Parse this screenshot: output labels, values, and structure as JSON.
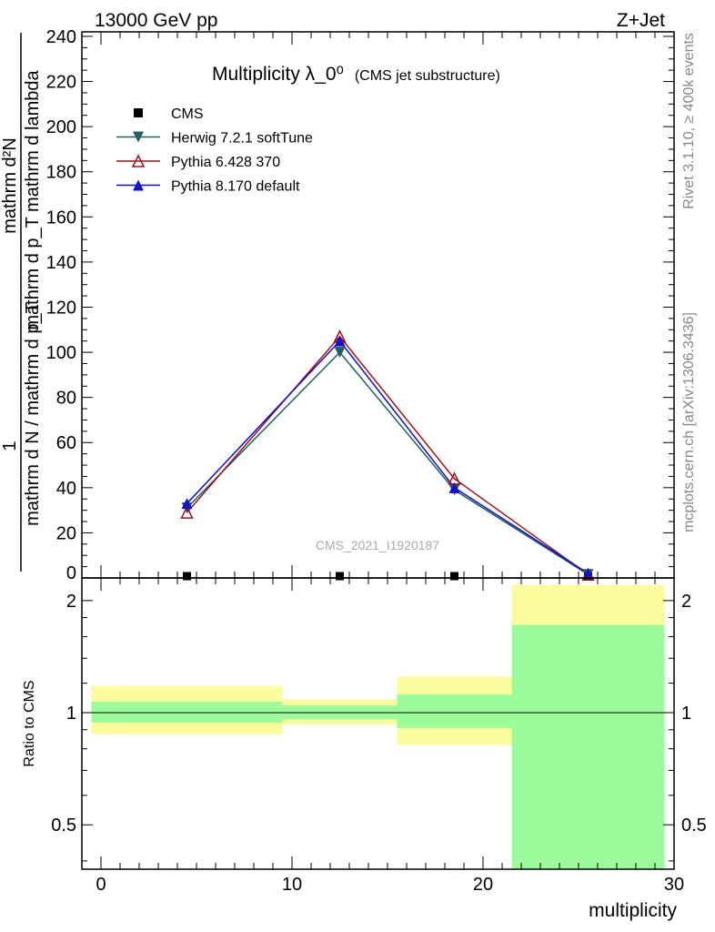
{
  "header": {
    "left": "13000 GeV pp",
    "right": "Z+Jet"
  },
  "side_text": {
    "rivet": "Rivet 3.1.10, ≥ 400k events",
    "mcplots": "mcplots.cern.ch [arXiv:1306.3436]"
  },
  "watermark": "CMS_2021_I1920187",
  "colors": {
    "herwig": "#1f5f66",
    "pythia6": "#a0101a",
    "pythia8": "#1010d0",
    "band_inner": "#9cfc9c",
    "band_outer": "#fcfc9c"
  },
  "chart_data": [
    {
      "type": "line",
      "title": "Multiplicity λ_0⁰",
      "title_suffix": "(CMS jet substructure)",
      "ylabel_top": "1",
      "ylabel_frac_num": "mathrm d²N",
      "ylabel_frac_den_a": "mathrm d N / mathrm d p_T",
      "ylabel_frac_den_b": "mathrm d p_T mathrm d lambda",
      "xlim": [
        -1,
        30
      ],
      "ylim": [
        0,
        242
      ],
      "yticks": [
        20,
        40,
        60,
        80,
        100,
        120,
        140,
        160,
        180,
        200,
        220,
        240
      ],
      "legend_position": "top-left",
      "series": [
        {
          "name": "CMS",
          "marker": "square",
          "x": [
            4.5,
            12.5,
            18.5,
            25.5
          ],
          "y": [
            0.6,
            0.9,
            0.8,
            0.1
          ]
        },
        {
          "name": "Herwig 7.2.1 softTune",
          "marker": "triangle-down",
          "x": [
            4.5,
            12.5,
            18.5,
            25.5
          ],
          "y": [
            31,
            100,
            39,
            1.5
          ]
        },
        {
          "name": "Pythia 6.428 370",
          "marker": "triangle-open",
          "x": [
            4.5,
            12.5,
            18.5,
            25.5
          ],
          "y": [
            29,
            107,
            44,
            1.5
          ]
        },
        {
          "name": "Pythia 8.170 default",
          "marker": "triangle-up",
          "x": [
            4.5,
            12.5,
            18.5,
            25.5
          ],
          "y": [
            33,
            105,
            40,
            2
          ]
        }
      ]
    },
    {
      "type": "area",
      "ylabel": "Ratio to CMS",
      "xlabel": "multiplicity",
      "xlim": [
        -1,
        30
      ],
      "ylim": [
        0.38,
        2.3
      ],
      "log_y": true,
      "yticks": [
        0.5,
        1,
        2
      ],
      "xticks": [
        0,
        10,
        20,
        30
      ],
      "bins": [
        {
          "x": [
            -0.5,
            9.5
          ],
          "outer": [
            0.875,
            1.18
          ],
          "inner": [
            0.94,
            1.07
          ]
        },
        {
          "x": [
            9.5,
            15.5
          ],
          "outer": [
            0.93,
            1.085
          ],
          "inner": [
            0.96,
            1.045
          ]
        },
        {
          "x": [
            15.5,
            21.5
          ],
          "outer": [
            0.82,
            1.25
          ],
          "inner": [
            0.91,
            1.12
          ]
        },
        {
          "x": [
            21.5,
            29.5
          ],
          "outer": [
            0.38,
            2.2
          ],
          "inner": [
            0.38,
            1.72
          ]
        }
      ]
    }
  ]
}
